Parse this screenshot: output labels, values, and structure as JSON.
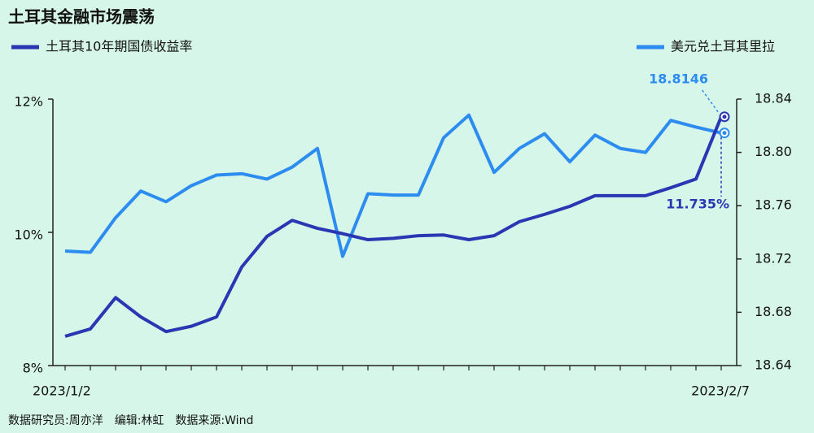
{
  "chart_data": {
    "type": "line",
    "title": "土耳其金融市场震荡",
    "source": "数据研究员:周亦洋　编辑:林虹　数据来源:Wind",
    "categories": [
      "2023/1/2",
      null,
      null,
      null,
      null,
      null,
      null,
      null,
      null,
      null,
      null,
      null,
      null,
      null,
      null,
      null,
      null,
      null,
      null,
      null,
      null,
      null,
      null,
      null,
      null,
      null,
      "2023/2/7"
    ],
    "series": [
      {
        "name": "土耳其10年期国债收益率",
        "color": "#2a37b3",
        "values": [
          8.44,
          8.55,
          9.02,
          8.73,
          8.51,
          8.59,
          8.73,
          9.48,
          9.94,
          10.18,
          10.06,
          9.98,
          9.89,
          9.91,
          9.95,
          9.96,
          9.89,
          9.95,
          10.16,
          10.27,
          10.39,
          10.55,
          10.55,
          10.55,
          10.67,
          10.8,
          11.735
        ],
        "value_labels": [
          null,
          null,
          null,
          null,
          null,
          null,
          null,
          null,
          null,
          null,
          null,
          null,
          null,
          null,
          null,
          null,
          null,
          null,
          null,
          null,
          null,
          null,
          null,
          null,
          null,
          null,
          "11.735%"
        ]
      },
      {
        "name": "美元兑土耳其里拉",
        "color": "#2d8cf0",
        "axis": "y2",
        "values": [
          18.726,
          18.725,
          18.751,
          18.771,
          18.763,
          18.775,
          18.783,
          18.784,
          18.78,
          18.789,
          18.803,
          18.722,
          18.769,
          18.768,
          18.768,
          18.811,
          18.828,
          18.785,
          18.803,
          18.814,
          18.793,
          18.813,
          18.803,
          18.8,
          18.824,
          18.819,
          18.8146
        ]
      }
    ],
    "ylim": [
      8,
      12
    ],
    "yticks": [
      {
        "value": 8,
        "label": "8%"
      },
      {
        "value": 10,
        "label": "10%"
      },
      {
        "value": 12,
        "label": "12%"
      }
    ],
    "y2lim": [
      18.64,
      18.84
    ],
    "y2ticks": [
      18.64,
      18.68,
      18.72,
      18.76,
      {
        "value": 18.8,
        "label": "18.80"
      },
      18.84
    ]
  }
}
